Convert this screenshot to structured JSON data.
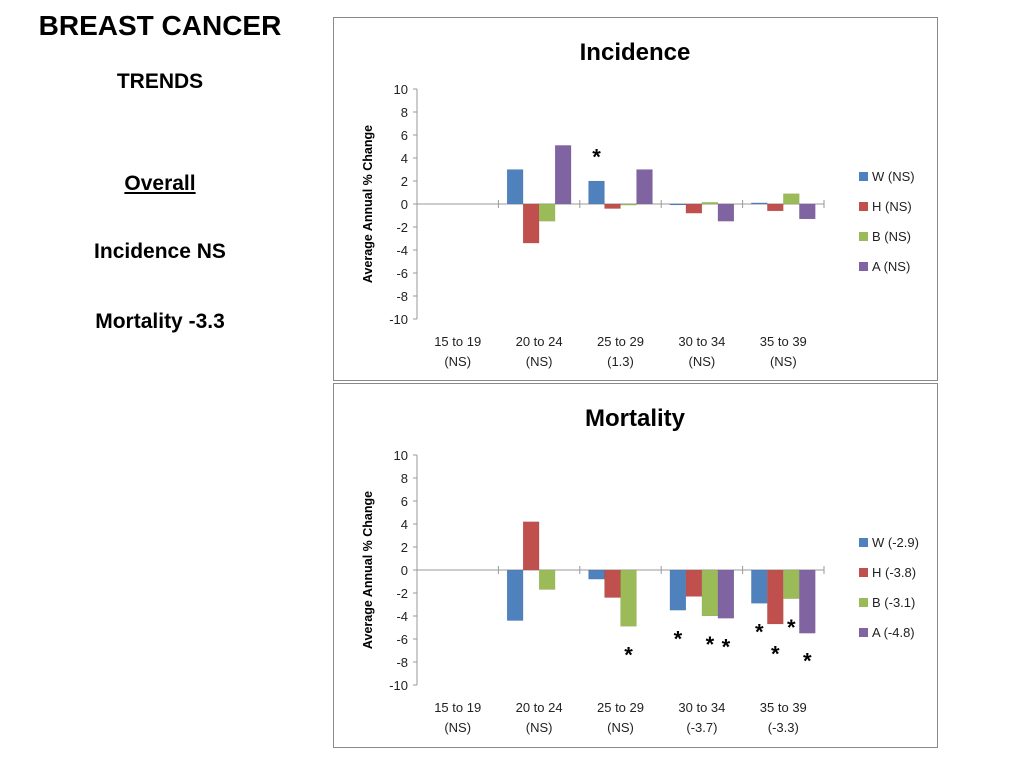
{
  "sidebar": {
    "title": "BREAST CANCER",
    "subtitle": "TRENDS",
    "overall_heading": "Overall",
    "incidence_summary": "Incidence NS",
    "mortality_summary": "Mortality -3.3"
  },
  "colors": {
    "W": "#4f81bd",
    "H": "#c0504d",
    "B": "#9bbb59",
    "A": "#8064a2"
  },
  "chart_data": [
    {
      "type": "bar",
      "title": "Incidence",
      "xlabel": "",
      "ylabel": "Average Annual % Change",
      "ylim": [
        -10,
        10
      ],
      "yticks": [
        10,
        8,
        6,
        4,
        2,
        0,
        -2,
        -4,
        -6,
        -8,
        -10
      ],
      "grid": false,
      "legend_position": "right",
      "categories": [
        {
          "label": "15 to 19",
          "sub": "(NS)"
        },
        {
          "label": "20 to 24",
          "sub": "(NS)"
        },
        {
          "label": "25 to 29",
          "sub": "(1.3)"
        },
        {
          "label": "30 to 34",
          "sub": "(NS)"
        },
        {
          "label": "35 to 39",
          "sub": "(NS)"
        }
      ],
      "series": [
        {
          "key": "W",
          "name": "W (NS)",
          "values": [
            null,
            3.0,
            2.0,
            0.0,
            0.1
          ]
        },
        {
          "key": "H",
          "name": "H (NS)",
          "values": [
            null,
            -3.4,
            -0.4,
            -0.8,
            -0.6
          ]
        },
        {
          "key": "B",
          "name": "B (NS)",
          "values": [
            null,
            -1.5,
            -0.1,
            0.15,
            0.9
          ]
        },
        {
          "key": "A",
          "name": "A (NS)",
          "values": [
            null,
            5.1,
            3.0,
            -1.5,
            -1.3
          ]
        }
      ],
      "annotations": [
        {
          "text": "*",
          "category": 2,
          "series": "W",
          "note": "significant",
          "y": 4.5
        }
      ]
    },
    {
      "type": "bar",
      "title": "Mortality",
      "xlabel": "",
      "ylabel": "Average Annual % Change",
      "ylim": [
        -10,
        10
      ],
      "yticks": [
        10,
        8,
        6,
        4,
        2,
        0,
        -2,
        -4,
        -6,
        -8,
        -10
      ],
      "grid": false,
      "legend_position": "right",
      "categories": [
        {
          "label": "15 to 19",
          "sub": "(NS)"
        },
        {
          "label": "20 to 24",
          "sub": "(NS)"
        },
        {
          "label": "25 to 29",
          "sub": "(NS)"
        },
        {
          "label": "30 to 34",
          "sub": "(-3.7)"
        },
        {
          "label": "35 to 39",
          "sub": "(-3.3)"
        }
      ],
      "series": [
        {
          "key": "W",
          "name": "W (-2.9)",
          "values": [
            null,
            -4.4,
            -0.8,
            -3.5,
            -2.9
          ]
        },
        {
          "key": "H",
          "name": "H (-3.8)",
          "values": [
            null,
            4.2,
            -2.4,
            -2.3,
            -4.7
          ]
        },
        {
          "key": "B",
          "name": "B (-3.1)",
          "values": [
            null,
            -1.7,
            -4.9,
            -4.0,
            -2.5
          ]
        },
        {
          "key": "A",
          "name": "A (-4.8)",
          "values": [
            null,
            null,
            null,
            -4.2,
            -5.5
          ]
        }
      ],
      "annotations": [
        {
          "text": "*",
          "category": 2,
          "series": "B",
          "y": -7.0
        },
        {
          "text": "*",
          "category": 3,
          "series": "W",
          "y": -5.6
        },
        {
          "text": "*",
          "category": 3,
          "series": "B",
          "y": -6.1
        },
        {
          "text": "*",
          "category": 3,
          "series": "A",
          "y": -6.3
        },
        {
          "text": "*",
          "category": 4,
          "series": "W",
          "y": -5.0
        },
        {
          "text": "*",
          "category": 4,
          "series": "H",
          "y": -6.9
        },
        {
          "text": "*",
          "category": 4,
          "series": "B",
          "y": -4.6
        },
        {
          "text": "*",
          "category": 4,
          "series": "A",
          "y": -7.5
        }
      ]
    }
  ]
}
